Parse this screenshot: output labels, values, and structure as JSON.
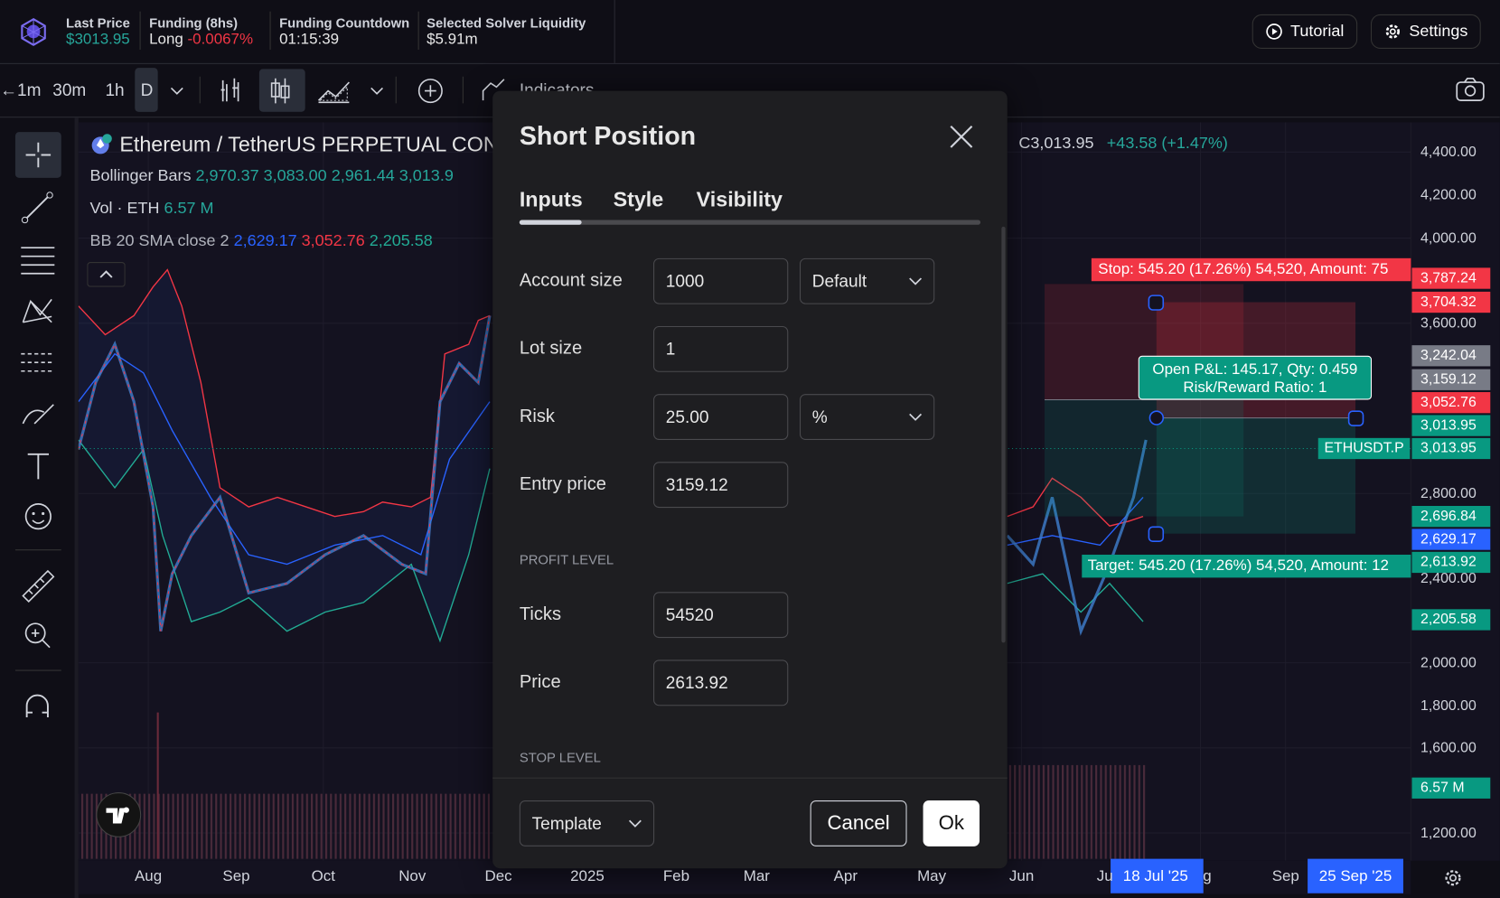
{
  "header": {
    "last_price_label": "Last Price",
    "last_price": "$3013.95",
    "funding_label": "Funding (8hs)",
    "funding_side": "Long",
    "funding_rate": "-0.0067%",
    "countdown_label": "Funding Countdown",
    "countdown": "01:15:39",
    "liquidity_label": "Selected Solver Liquidity",
    "liquidity": "$5.91m",
    "tutorial": "Tutorial",
    "settings": "Settings"
  },
  "toolbar": {
    "intervals": [
      "1m",
      "30m",
      "1h",
      "D"
    ],
    "indicators": "Indicators"
  },
  "legend": {
    "symbol": "Ethereum / TetherUS PERPETUAL CONT",
    "close": "C3,013.95",
    "change": "+43.58 (+1.47%)",
    "bb_name": "Bollinger Bars",
    "bb_values": [
      "2,970.37",
      "3,083.00",
      "2,961.44",
      "3,013.9"
    ],
    "vol_name": "Vol · ETH",
    "vol_value": "6.57 M",
    "sma_name": "BB 20 SMA close 2",
    "sma_values": [
      "2,629.17",
      "3,052.76",
      "2,205.58"
    ]
  },
  "price_axis": {
    "ticks": [
      "4,400.00",
      "4,200.00",
      "4,000.00",
      "3,600.00",
      "2,800.00",
      "2,400.00",
      "2,000.00",
      "1,800.00",
      "1,600.00",
      "1,200.00"
    ],
    "tags": [
      {
        "text": "3,787.24",
        "color": "#f23645"
      },
      {
        "text": "3,704.32",
        "color": "#f23645"
      },
      {
        "text": "3,242.04",
        "color": "#787b86"
      },
      {
        "text": "3,159.12",
        "color": "#787b86"
      },
      {
        "text": "3,052.76",
        "color": "#f23645"
      },
      {
        "text": "3,013.95",
        "color": "#089981"
      },
      {
        "text": "3,013.95",
        "color": "#089981"
      },
      {
        "text": "2,696.84",
        "color": "#089981"
      },
      {
        "text": "2,629.17",
        "color": "#2962ff"
      },
      {
        "text": "2,613.92",
        "color": "#089981"
      },
      {
        "text": "2,205.58",
        "color": "#089981"
      },
      {
        "text": "6.57 M",
        "color": "#089981"
      }
    ]
  },
  "time_axis": {
    "labels": [
      "Aug",
      "Sep",
      "Oct",
      "Nov",
      "Dec",
      "2025",
      "Feb",
      "Mar",
      "Apr",
      "May",
      "Jun",
      "Ju",
      "g",
      "Sep"
    ],
    "highlights": [
      "18 Jul '25",
      "25 Sep '25"
    ]
  },
  "overlays": {
    "stop": "Stop: 545.20 (17.26%) 54,520, Amount: 75",
    "target": "Target: 545.20 (17.26%) 54,520, Amount: 12",
    "pnl": "Open P&L: 145.17, Qty: 0.459",
    "ratio": "Risk/Reward Ratio: 1",
    "symbol_tag": "ETHUSDT.P"
  },
  "dialog": {
    "title": "Short Position",
    "tabs": [
      "Inputs",
      "Style",
      "Visibility"
    ],
    "fields": [
      {
        "label": "Account size",
        "value": "1000",
        "select": "Default"
      },
      {
        "label": "Lot size",
        "value": "1"
      },
      {
        "label": "Risk",
        "value": "25.00",
        "select": "%"
      },
      {
        "label": "Entry price",
        "value": "3159.12"
      }
    ],
    "profit_heading": "PROFIT LEVEL",
    "profit_fields": [
      {
        "label": "Ticks",
        "value": "54520"
      },
      {
        "label": "Price",
        "value": "2613.92"
      }
    ],
    "stop_heading": "STOP LEVEL",
    "template": "Template",
    "cancel": "Cancel",
    "ok": "Ok"
  }
}
